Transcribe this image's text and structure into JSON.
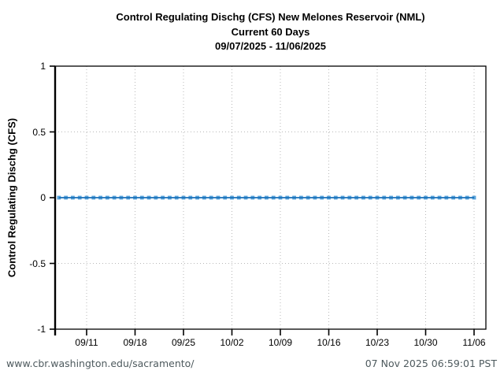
{
  "title": {
    "line1": "Control Regulating Dischg (CFS) New Melones Reservoir (NML)",
    "line2": "Current 60 Days",
    "line3": "09/07/2025 - 11/06/2025"
  },
  "footer": {
    "site": "www.cbr.washington.edu/sacramento/",
    "timestamp": "07 Nov 2025 06:59:01 PST",
    "text_color": "#4e5a5e"
  },
  "chart_data": {
    "type": "line",
    "title": "Control Regulating Dischg (CFS) New Melones Reservoir (NML) — Current 60 Days — 09/07/2025 - 11/06/2025",
    "xlabel": "",
    "ylabel": "Control Regulating Dischg (CFS)",
    "ylim": [
      -1,
      1
    ],
    "x_range": {
      "start_date": "09/07/2025",
      "end_date": "11/06/2025",
      "interval": "daily",
      "num_points": 61
    },
    "grid": "dotted",
    "legend": "none",
    "marker": "square",
    "yticks": [
      {
        "label": "1",
        "value": 1
      },
      {
        "label": "0.5",
        "value": 0.5
      },
      {
        "label": "0",
        "value": 0
      },
      {
        "label": "-0.5",
        "value": -0.5
      },
      {
        "label": "-1",
        "value": -1
      }
    ],
    "grid_y": [
      0.5,
      -0.5
    ],
    "xticks": [
      {
        "label": "09/11",
        "day": 4
      },
      {
        "label": "09/18",
        "day": 11
      },
      {
        "label": "09/25",
        "day": 18
      },
      {
        "label": "10/02",
        "day": 25
      },
      {
        "label": "10/09",
        "day": 32
      },
      {
        "label": "10/16",
        "day": 39
      },
      {
        "label": "10/23",
        "day": 46
      },
      {
        "label": "10/30",
        "day": 53
      },
      {
        "label": "11/06",
        "day": 60
      }
    ],
    "series": [
      {
        "name": "Control Regulating Dischg (CFS)",
        "values": [
          0,
          0,
          0,
          0,
          0,
          0,
          0,
          0,
          0,
          0,
          0,
          0,
          0,
          0,
          0,
          0,
          0,
          0,
          0,
          0,
          0,
          0,
          0,
          0,
          0,
          0,
          0,
          0,
          0,
          0,
          0,
          0,
          0,
          0,
          0,
          0,
          0,
          0,
          0,
          0,
          0,
          0,
          0,
          0,
          0,
          0,
          0,
          0,
          0,
          0,
          0,
          0,
          0,
          0,
          0,
          0,
          0,
          0,
          0,
          0,
          0
        ]
      }
    ],
    "colors": {
      "line": "#1a70b8",
      "marker": "#5aa5dc",
      "grid": "#b8b8b8",
      "axis": "#000000"
    }
  }
}
